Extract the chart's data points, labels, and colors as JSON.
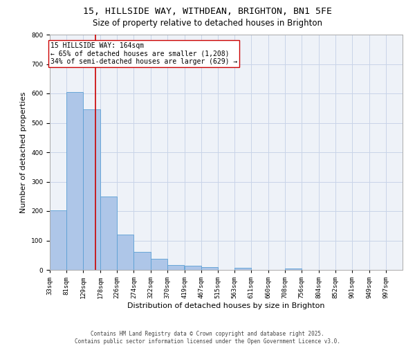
{
  "title_line1": "15, HILLSIDE WAY, WITHDEAN, BRIGHTON, BN1 5FE",
  "title_line2": "Size of property relative to detached houses in Brighton",
  "xlabel": "Distribution of detached houses by size in Brighton",
  "ylabel": "Number of detached properties",
  "bin_edges": [
    33,
    81,
    129,
    178,
    226,
    274,
    322,
    370,
    419,
    467,
    515,
    563,
    611,
    660,
    708,
    756,
    804,
    852,
    901,
    949,
    997
  ],
  "bin_labels": [
    "33sqm",
    "81sqm",
    "129sqm",
    "178sqm",
    "226sqm",
    "274sqm",
    "322sqm",
    "370sqm",
    "419sqm",
    "467sqm",
    "515sqm",
    "563sqm",
    "611sqm",
    "660sqm",
    "708sqm",
    "756sqm",
    "804sqm",
    "852sqm",
    "901sqm",
    "949sqm",
    "997sqm"
  ],
  "counts": [
    203,
    605,
    545,
    250,
    120,
    62,
    37,
    17,
    13,
    9,
    0,
    7,
    0,
    0,
    5,
    0,
    0,
    0,
    0,
    0
  ],
  "bar_color": "#aec6e8",
  "bar_edge_color": "#5a9fd4",
  "property_size": 164,
  "vline_color": "#cc0000",
  "annotation_text": "15 HILLSIDE WAY: 164sqm\n← 65% of detached houses are smaller (1,208)\n34% of semi-detached houses are larger (629) →",
  "annotation_box_color": "#ffffff",
  "annotation_box_edge": "#cc0000",
  "ylim": [
    0,
    800
  ],
  "yticks": [
    0,
    100,
    200,
    300,
    400,
    500,
    600,
    700,
    800
  ],
  "grid_color": "#c8d4e8",
  "background_color": "#eef2f8",
  "footnote": "Contains HM Land Registry data © Crown copyright and database right 2025.\nContains public sector information licensed under the Open Government Licence v3.0.",
  "title_fontsize": 9.5,
  "subtitle_fontsize": 8.5,
  "axis_label_fontsize": 8,
  "tick_fontsize": 6.5,
  "annotation_fontsize": 7,
  "footnote_fontsize": 5.5
}
